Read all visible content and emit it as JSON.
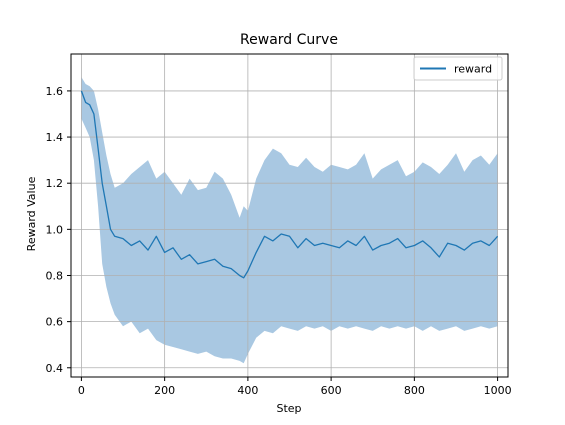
{
  "chart_data": {
    "type": "line",
    "title": "Reward Curve",
    "xlabel": "Step",
    "ylabel": "Reward Value",
    "xlim": [
      -25,
      1025
    ],
    "ylim": [
      0.36,
      1.76
    ],
    "xticks": [
      0,
      200,
      400,
      600,
      800,
      1000
    ],
    "yticks": [
      0.4,
      0.6,
      0.8,
      1.0,
      1.2,
      1.4,
      1.6
    ],
    "ytick_labels": [
      "0.4",
      "0.6",
      "0.8",
      "1.0",
      "1.2",
      "1.4",
      "1.6"
    ],
    "grid": true,
    "legend": {
      "entries": [
        "reward"
      ],
      "placement": "top-right"
    },
    "colors": {
      "line": "#1f77b4",
      "band": "#a9c8e2",
      "grid": "#b0b0b0",
      "axes": "#000000"
    },
    "series": [
      {
        "name": "reward",
        "x": [
          0,
          10,
          20,
          30,
          40,
          50,
          60,
          70,
          80,
          100,
          120,
          140,
          160,
          180,
          200,
          220,
          240,
          260,
          280,
          300,
          320,
          340,
          360,
          380,
          390,
          400,
          420,
          440,
          460,
          480,
          500,
          520,
          540,
          560,
          580,
          600,
          620,
          640,
          660,
          680,
          700,
          720,
          740,
          760,
          780,
          800,
          820,
          840,
          860,
          880,
          900,
          920,
          940,
          960,
          980,
          1000
        ],
        "y": [
          1.6,
          1.55,
          1.54,
          1.5,
          1.35,
          1.2,
          1.1,
          1.0,
          0.97,
          0.96,
          0.93,
          0.95,
          0.91,
          0.97,
          0.9,
          0.92,
          0.87,
          0.89,
          0.85,
          0.86,
          0.87,
          0.84,
          0.83,
          0.8,
          0.79,
          0.82,
          0.9,
          0.97,
          0.95,
          0.98,
          0.97,
          0.92,
          0.96,
          0.93,
          0.94,
          0.93,
          0.92,
          0.95,
          0.93,
          0.97,
          0.91,
          0.93,
          0.94,
          0.96,
          0.92,
          0.93,
          0.95,
          0.92,
          0.88,
          0.94,
          0.93,
          0.91,
          0.94,
          0.95,
          0.93,
          0.97
        ],
        "upper": [
          1.66,
          1.63,
          1.62,
          1.6,
          1.52,
          1.42,
          1.32,
          1.24,
          1.18,
          1.2,
          1.24,
          1.27,
          1.3,
          1.22,
          1.25,
          1.2,
          1.15,
          1.22,
          1.17,
          1.18,
          1.25,
          1.22,
          1.15,
          1.05,
          1.1,
          1.08,
          1.22,
          1.3,
          1.35,
          1.33,
          1.28,
          1.27,
          1.31,
          1.27,
          1.25,
          1.28,
          1.27,
          1.26,
          1.28,
          1.33,
          1.22,
          1.26,
          1.28,
          1.3,
          1.23,
          1.25,
          1.29,
          1.27,
          1.24,
          1.28,
          1.33,
          1.25,
          1.3,
          1.32,
          1.28,
          1.33
        ],
        "lower": [
          1.48,
          1.44,
          1.4,
          1.3,
          1.1,
          0.85,
          0.75,
          0.68,
          0.63,
          0.58,
          0.6,
          0.55,
          0.57,
          0.52,
          0.5,
          0.49,
          0.48,
          0.47,
          0.46,
          0.47,
          0.45,
          0.44,
          0.44,
          0.43,
          0.42,
          0.46,
          0.53,
          0.56,
          0.55,
          0.58,
          0.57,
          0.56,
          0.58,
          0.57,
          0.58,
          0.56,
          0.58,
          0.57,
          0.58,
          0.57,
          0.56,
          0.58,
          0.57,
          0.58,
          0.57,
          0.58,
          0.56,
          0.58,
          0.56,
          0.57,
          0.58,
          0.56,
          0.57,
          0.58,
          0.57,
          0.58
        ]
      }
    ]
  }
}
